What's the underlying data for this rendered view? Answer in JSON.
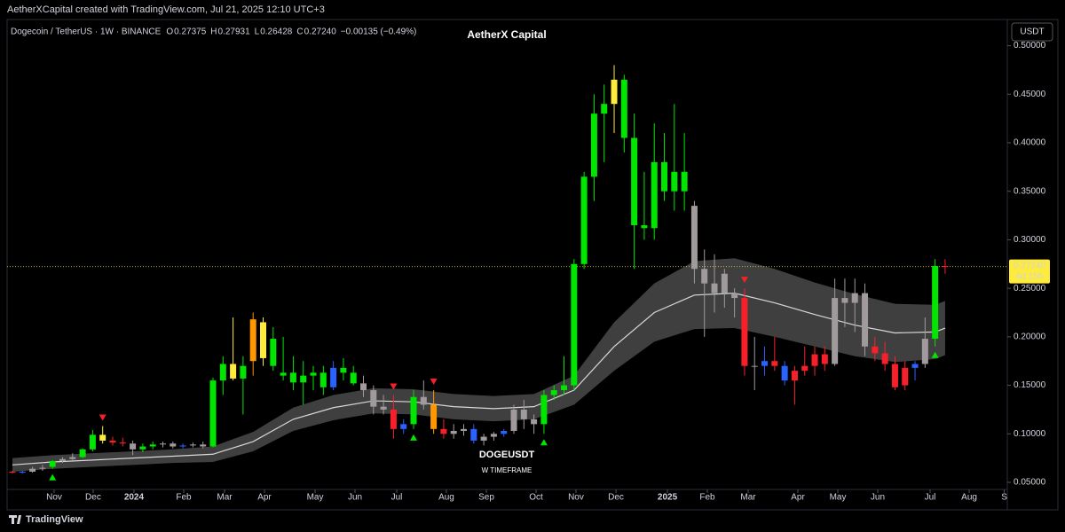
{
  "watermark": "AetherXCapital created with TradingView.com, Jul 21, 2025 12:10 UTC+3",
  "header": {
    "symbol": "Dogecoin / TetherUS · 1W · BINANCE",
    "ohlc": [
      {
        "k": "O",
        "v": "0.27375"
      },
      {
        "k": "H",
        "v": "0.27931"
      },
      {
        "k": "L",
        "v": "0.26428"
      },
      {
        "k": "C",
        "v": "0.27240"
      }
    ],
    "change": "−0.00135 (−0.49%)"
  },
  "currency_button": "USDT",
  "footer": "TradingView",
  "chart_data": {
    "type": "candlestick",
    "title": "AetherX Capital",
    "annotation": "DOGEUSDT",
    "annotation_sub": "W TIMEFRAME",
    "xlim": [
      -0.53,
      99.2
    ],
    "xticks": [
      {
        "value": 4.16,
        "label": "Nov"
      },
      {
        "value": 8.05,
        "label": "Dec"
      },
      {
        "value": 12.12,
        "label": "2024"
      },
      {
        "value": 17.08,
        "label": "Feb"
      },
      {
        "value": 21.15,
        "label": "Mar"
      },
      {
        "value": 25.13,
        "label": "Apr"
      },
      {
        "value": 30.18,
        "label": "May"
      },
      {
        "value": 34.16,
        "label": "Jun"
      },
      {
        "value": 38.32,
        "label": "Jul"
      },
      {
        "value": 43.27,
        "label": "Aug"
      },
      {
        "value": 47.26,
        "label": "Sep"
      },
      {
        "value": 52.21,
        "label": "Oct"
      },
      {
        "value": 56.19,
        "label": "Nov"
      },
      {
        "value": 60.18,
        "label": "Dec"
      },
      {
        "value": 65.31,
        "label": "2025"
      },
      {
        "value": 69.29,
        "label": "Feb"
      },
      {
        "value": 73.36,
        "label": "Mar"
      },
      {
        "value": 78.32,
        "label": "Apr"
      },
      {
        "value": 82.3,
        "label": "May"
      },
      {
        "value": 86.28,
        "label": "Jun"
      },
      {
        "value": 91.5,
        "label": "Jul"
      },
      {
        "value": 95.4,
        "label": "Aug"
      },
      {
        "value": 98.9,
        "label": "S"
      }
    ],
    "ylim": [
      0.0427,
      0.527
    ],
    "yticks": [
      {
        "value": 0.05,
        "label": "0.05000"
      },
      {
        "value": 0.1,
        "label": "0.10000"
      },
      {
        "value": 0.15,
        "label": "0.15000"
      },
      {
        "value": 0.2,
        "label": "0.20000"
      },
      {
        "value": 0.25,
        "label": "0.25000"
      },
      {
        "value": 0.3,
        "label": "0.30000"
      },
      {
        "value": 0.35,
        "label": "0.35000"
      },
      {
        "value": 0.4,
        "label": "0.40000"
      },
      {
        "value": 0.45,
        "label": "0.45000"
      },
      {
        "value": 0.5,
        "label": "0.50000"
      }
    ],
    "open": [
      0.061,
      0.06,
      0.061,
      0.064,
      0.066,
      0.072,
      0.074,
      0.076,
      0.084,
      0.099,
      0.093,
      0.091,
      0.09,
      0.084,
      0.087,
      0.089,
      0.09,
      0.087,
      0.088,
      0.089,
      0.087,
      0.155,
      0.172,
      0.157,
      0.175,
      0.215,
      0.17,
      0.16,
      0.163,
      0.153,
      0.16,
      0.163,
      0.148,
      0.168,
      0.163,
      0.152,
      0.145,
      0.128,
      0.125,
      0.105,
      0.11,
      0.138,
      0.13,
      0.105,
      0.1,
      0.103,
      0.105,
      0.093,
      0.097,
      0.1,
      0.103,
      0.125,
      0.115,
      0.11,
      0.14,
      0.145,
      0.15,
      0.275,
      0.365,
      0.43,
      0.44,
      0.465,
      0.405,
      0.315,
      0.312,
      0.38,
      0.35,
      0.37,
      0.335,
      0.27,
      0.255,
      0.245,
      0.245,
      0.24,
      0.17,
      0.17,
      0.175,
      0.17,
      0.155,
      0.165,
      0.17,
      0.182,
      0.172,
      0.24,
      0.235,
      0.245,
      0.19,
      0.183,
      0.172,
      0.15,
      0.168,
      0.172,
      0.198,
      0.273
    ],
    "high": [
      0.062,
      0.062,
      0.066,
      0.068,
      0.073,
      0.076,
      0.08,
      0.085,
      0.104,
      0.108,
      0.097,
      0.096,
      0.093,
      0.09,
      0.092,
      0.092,
      0.092,
      0.09,
      0.091,
      0.092,
      0.158,
      0.18,
      0.22,
      0.18,
      0.225,
      0.22,
      0.21,
      0.2,
      0.18,
      0.175,
      0.17,
      0.17,
      0.175,
      0.178,
      0.17,
      0.16,
      0.15,
      0.14,
      0.14,
      0.115,
      0.145,
      0.155,
      0.145,
      0.115,
      0.11,
      0.11,
      0.11,
      0.1,
      0.102,
      0.105,
      0.13,
      0.135,
      0.12,
      0.145,
      0.15,
      0.18,
      0.28,
      0.37,
      0.45,
      0.46,
      0.48,
      0.47,
      0.43,
      0.37,
      0.42,
      0.41,
      0.44,
      0.41,
      0.34,
      0.29,
      0.285,
      0.27,
      0.25,
      0.25,
      0.2,
      0.19,
      0.2,
      0.175,
      0.17,
      0.19,
      0.19,
      0.19,
      0.26,
      0.26,
      0.26,
      0.255,
      0.2,
      0.195,
      0.18,
      0.175,
      0.175,
      0.22,
      0.28,
      0.28
    ],
    "low": [
      0.059,
      0.059,
      0.06,
      0.062,
      0.064,
      0.07,
      0.073,
      0.075,
      0.082,
      0.09,
      0.088,
      0.087,
      0.078,
      0.081,
      0.084,
      0.086,
      0.085,
      0.085,
      0.086,
      0.085,
      0.086,
      0.14,
      0.155,
      0.12,
      0.16,
      0.17,
      0.165,
      0.155,
      0.145,
      0.13,
      0.145,
      0.14,
      0.145,
      0.155,
      0.15,
      0.138,
      0.12,
      0.12,
      0.095,
      0.1,
      0.105,
      0.125,
      0.1,
      0.095,
      0.095,
      0.098,
      0.09,
      0.088,
      0.093,
      0.097,
      0.1,
      0.105,
      0.1,
      0.1,
      0.135,
      0.14,
      0.145,
      0.27,
      0.34,
      0.38,
      0.41,
      0.39,
      0.27,
      0.3,
      0.3,
      0.34,
      0.33,
      0.33,
      0.255,
      0.2,
      0.225,
      0.23,
      0.22,
      0.16,
      0.145,
      0.16,
      0.165,
      0.15,
      0.13,
      0.16,
      0.16,
      0.165,
      0.17,
      0.21,
      0.205,
      0.18,
      0.175,
      0.165,
      0.145,
      0.145,
      0.155,
      0.168,
      0.19,
      0.265
    ],
    "close": [
      0.06,
      0.061,
      0.064,
      0.065,
      0.072,
      0.074,
      0.076,
      0.084,
      0.099,
      0.093,
      0.091,
      0.09,
      0.084,
      0.087,
      0.089,
      0.09,
      0.087,
      0.088,
      0.089,
      0.087,
      0.155,
      0.172,
      0.157,
      0.17,
      0.218,
      0.178,
      0.198,
      0.163,
      0.153,
      0.16,
      0.163,
      0.148,
      0.168,
      0.163,
      0.152,
      0.145,
      0.128,
      0.125,
      0.105,
      0.11,
      0.138,
      0.13,
      0.105,
      0.1,
      0.103,
      0.105,
      0.093,
      0.097,
      0.1,
      0.103,
      0.125,
      0.115,
      0.11,
      0.14,
      0.145,
      0.15,
      0.275,
      0.365,
      0.43,
      0.44,
      0.465,
      0.405,
      0.315,
      0.312,
      0.38,
      0.35,
      0.37,
      0.35,
      0.27,
      0.255,
      0.245,
      0.265,
      0.24,
      0.17,
      0.17,
      0.175,
      0.17,
      0.155,
      0.165,
      0.17,
      0.182,
      0.172,
      0.24,
      0.235,
      0.245,
      0.19,
      0.183,
      0.172,
      0.148,
      0.168,
      0.172,
      0.198,
      0.273,
      0.2724
    ],
    "colors": [
      "#f7202a",
      "#2962ff",
      "#a09a9c",
      "#a09a9c",
      "#00e600",
      "#a09a9c",
      "#a09a9c",
      "#00e600",
      "#00e600",
      "#ffeb3b",
      "#f7202a",
      "#f7202a",
      "#a09a9c",
      "#00e600",
      "#00e600",
      "#a09a9c",
      "#a09a9c",
      "#2962ff",
      "#a09a9c",
      "#a09a9c",
      "#00e600",
      "#00e600",
      "#ffeb3b",
      "#00e600",
      "#ff9800",
      "#ffeb3b",
      "#00e600",
      "#00e600",
      "#00e600",
      "#00e600",
      "#00e600",
      "#00e600",
      "#2962ff",
      "#00e600",
      "#00e600",
      "#a09a9c",
      "#a09a9c",
      "#a09a9c",
      "#f7202a",
      "#2962ff",
      "#00e600",
      "#a09a9c",
      "#ff9800",
      "#f7202a",
      "#a09a9c",
      "#a09a9c",
      "#2962ff",
      "#a09a9c",
      "#a09a9c",
      "#2962ff",
      "#a09a9c",
      "#a09a9c",
      "#a09a9c",
      "#00e600",
      "#00e600",
      "#00e600",
      "#00e600",
      "#00e600",
      "#00e600",
      "#00e600",
      "#ffeb3b",
      "#00e600",
      "#00e600",
      "#00e600",
      "#00e600",
      "#00e600",
      "#00e600",
      "#00e600",
      "#a09a9c",
      "#a09a9c",
      "#a09a9c",
      "#a09a9c",
      "#a09a9c",
      "#f7202a",
      "#a09a9c",
      "#2962ff",
      "#f7202a",
      "#2962ff",
      "#f7202a",
      "#f7202a",
      "#f7202a",
      "#f7202a",
      "#a09a9c",
      "#a09a9c",
      "#a09a9c",
      "#a09a9c",
      "#f7202a",
      "#f7202a",
      "#f7202a",
      "#f7202a",
      "#2962ff",
      "#a09a9c",
      "#00e600",
      "#f7202a"
    ],
    "band": {
      "x": [
        0,
        4,
        8,
        12,
        16,
        20,
        24,
        28,
        32,
        36,
        40,
        44,
        48,
        52,
        56,
        60,
        64,
        68,
        72,
        76,
        80,
        84,
        88,
        92,
        93
      ],
      "basis": [
        0.068,
        0.071,
        0.073,
        0.075,
        0.077,
        0.079,
        0.092,
        0.115,
        0.127,
        0.134,
        0.133,
        0.128,
        0.126,
        0.128,
        0.145,
        0.19,
        0.225,
        0.243,
        0.245,
        0.235,
        0.223,
        0.212,
        0.204,
        0.205,
        0.209
      ],
      "upper": [
        0.075,
        0.078,
        0.08,
        0.082,
        0.084,
        0.087,
        0.102,
        0.127,
        0.14,
        0.147,
        0.146,
        0.141,
        0.139,
        0.141,
        0.16,
        0.215,
        0.255,
        0.278,
        0.281,
        0.27,
        0.256,
        0.244,
        0.234,
        0.233,
        0.237
      ],
      "lower": [
        0.061,
        0.064,
        0.066,
        0.068,
        0.07,
        0.071,
        0.082,
        0.103,
        0.114,
        0.121,
        0.12,
        0.115,
        0.113,
        0.115,
        0.13,
        0.165,
        0.195,
        0.208,
        0.209,
        0.2,
        0.19,
        0.18,
        0.174,
        0.177,
        0.181
      ],
      "fill": "#4a4a4a",
      "line_color": "#d8d8d8"
    },
    "buy_signals": [
      4,
      40,
      53,
      92
    ],
    "sell_signals": [
      9,
      38,
      42,
      73
    ],
    "buy_color": "#00e600",
    "sell_color": "#f7202a",
    "last_price": {
      "value": 0.2724,
      "label": "0.27240",
      "countdown": "6d 15h",
      "color": "#ffeb3b"
    }
  }
}
